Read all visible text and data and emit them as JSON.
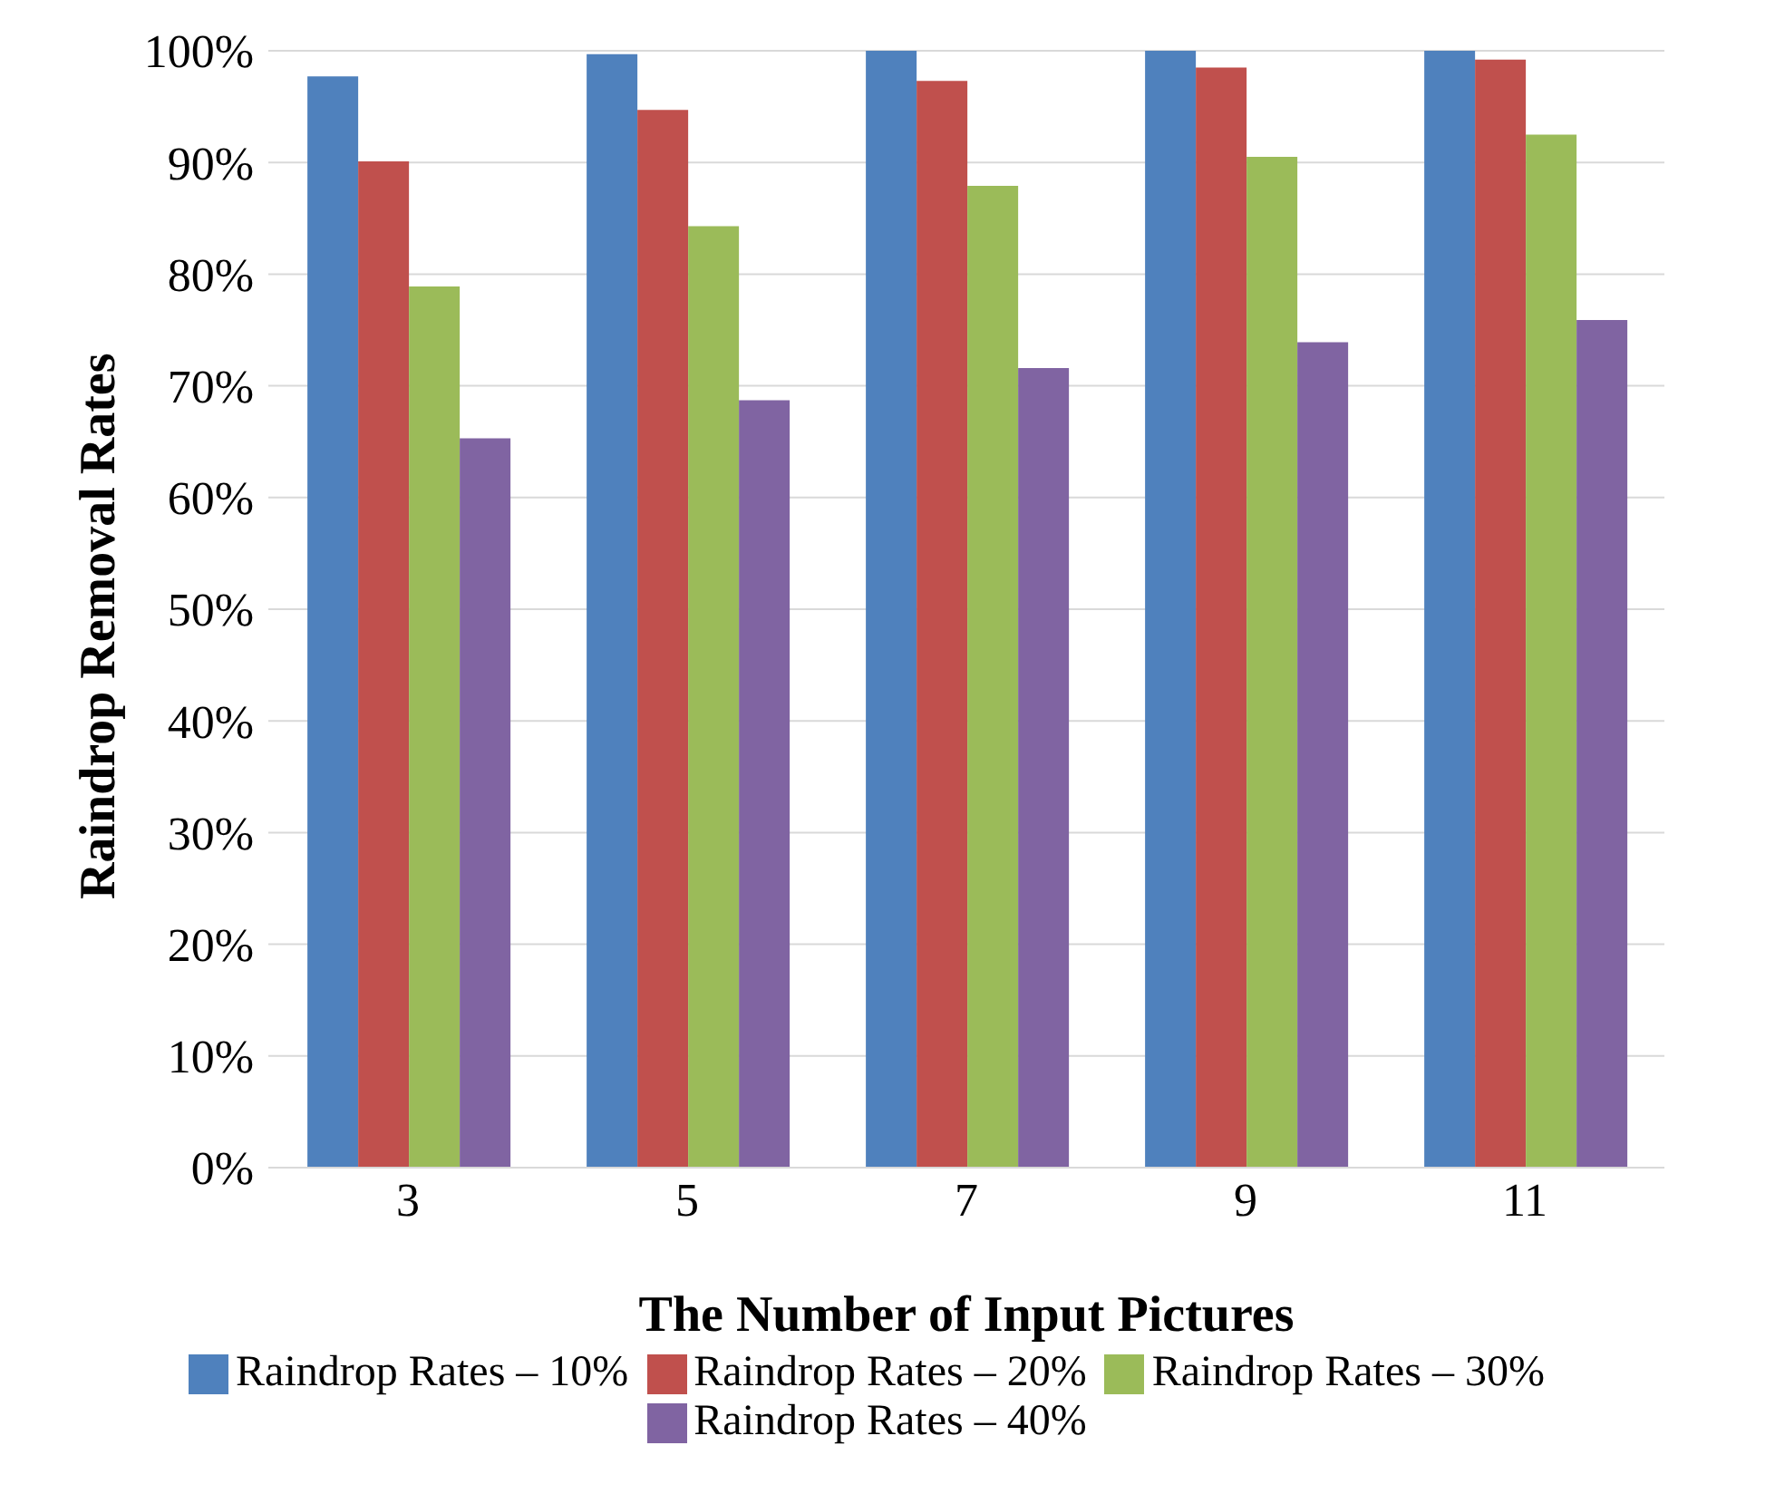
{
  "chart_data": {
    "type": "bar",
    "xlabel": "The Number of Input Pictures",
    "ylabel": "Raindrop Removal Rates",
    "categories": [
      "3",
      "5",
      "7",
      "9",
      "11"
    ],
    "series": [
      {
        "name": "Raindrop Rates – 10%",
        "color": "#4f81bd",
        "values": [
          97.7,
          99.7,
          100,
          100,
          100
        ]
      },
      {
        "name": "Raindrop Rates – 20%",
        "color": "#c0504d",
        "values": [
          90.1,
          94.7,
          97.3,
          98.5,
          99.2
        ]
      },
      {
        "name": "Raindrop Rates – 30%",
        "color": "#9bbb59",
        "values": [
          78.9,
          84.3,
          87.9,
          90.5,
          92.5
        ]
      },
      {
        "name": "Raindrop Rates – 40%",
        "color": "#8064a2",
        "values": [
          65.3,
          68.7,
          71.6,
          73.9,
          75.9
        ]
      }
    ],
    "ylim": [
      0,
      100
    ],
    "yticks": [
      {
        "value": 0,
        "label": "0%"
      },
      {
        "value": 10,
        "label": "10%"
      },
      {
        "value": 20,
        "label": "20%"
      },
      {
        "value": 30,
        "label": "30%"
      },
      {
        "value": 40,
        "label": "40%"
      },
      {
        "value": 50,
        "label": "50%"
      },
      {
        "value": 60,
        "label": "60%"
      },
      {
        "value": 70,
        "label": "70%"
      },
      {
        "value": 80,
        "label": "80%"
      },
      {
        "value": 90,
        "label": "90%"
      },
      {
        "value": 100,
        "label": "100%"
      }
    ],
    "grid": "y",
    "legend": "bottom"
  }
}
